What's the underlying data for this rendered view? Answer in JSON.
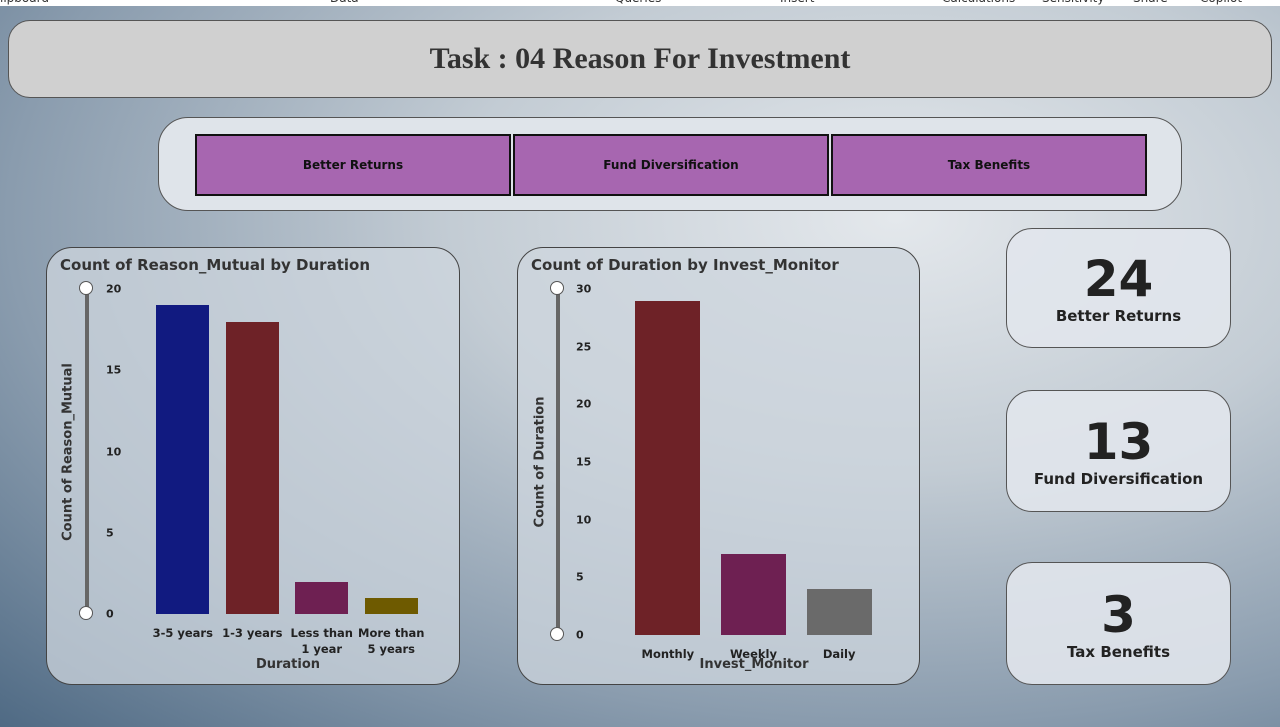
{
  "ribbon": {
    "tabs": [
      "lipboard",
      "Data",
      "Queries",
      "Insert",
      "Calculations",
      "Sensitivity",
      "Share",
      "Copilot"
    ]
  },
  "header": {
    "title": "Task : 04 Reason For Investment"
  },
  "slicer": {
    "buttons": [
      "Better Returns",
      "Fund Diversification",
      "Tax Benefits"
    ]
  },
  "charts": [
    {
      "type": "bar",
      "title": "Count of Reason_Mutual by Duration",
      "x_label": "Duration",
      "y_label": "Count of Reason_Mutual",
      "categories": [
        "3-5 years",
        "1-3 years",
        "Less than 1 year",
        "More than 5 years"
      ],
      "values": [
        19,
        18,
        2,
        1
      ],
      "colors": [
        "#111a80",
        "#6e2227",
        "#6e2052",
        "#6e5a00"
      ],
      "ylim": [
        0,
        20
      ],
      "yticks": [
        0,
        5,
        10,
        15,
        20
      ]
    },
    {
      "type": "bar",
      "title": "Count of Duration by Invest_Monitor",
      "x_label": "Invest_Monitor",
      "y_label": "Count of Duration",
      "categories": [
        "Monthly",
        "Weekly",
        "Daily"
      ],
      "values": [
        29,
        7,
        4
      ],
      "colors": [
        "#6e2227",
        "#6e2052",
        "#6a6a6a"
      ],
      "ylim": [
        0,
        30
      ],
      "yticks": [
        0,
        5,
        10,
        15,
        20,
        25,
        30
      ]
    }
  ],
  "cards": [
    {
      "value": 24,
      "label": "Better Returns"
    },
    {
      "value": 13,
      "label": "Fund Diversification"
    },
    {
      "value": 3,
      "label": "Tax Benefits"
    }
  ]
}
